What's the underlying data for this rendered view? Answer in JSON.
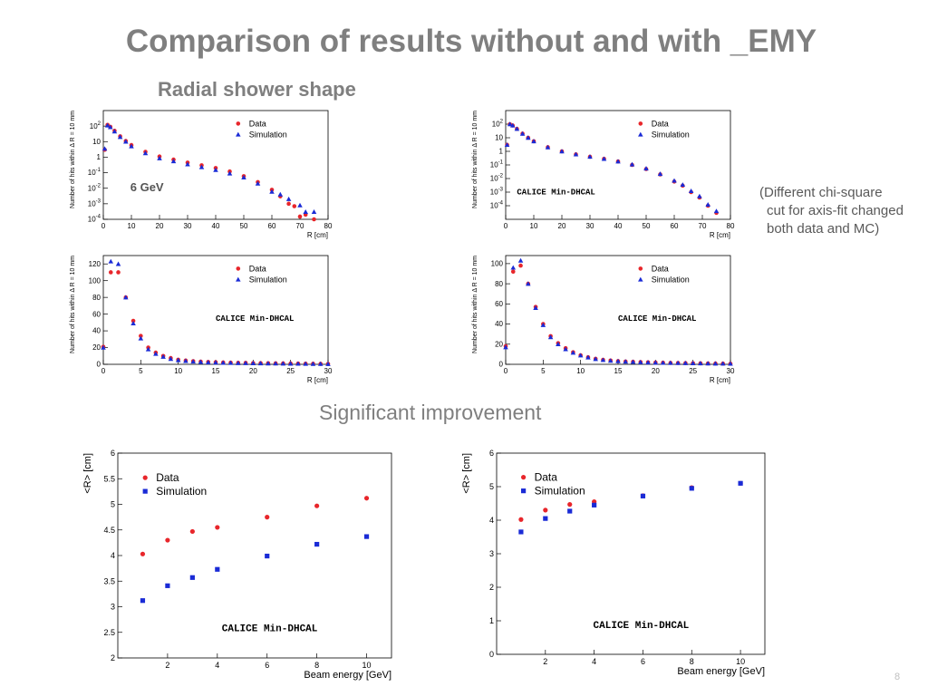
{
  "slide": {
    "title": "Comparison of results without and with _EMY",
    "subtitle": "Radial shower shape",
    "note_lines": [
      "(Different chi-square",
      "cut for axis-fit changed",
      "both data and MC)"
    ],
    "improvement": "Significant improvement",
    "page_number": "8"
  },
  "colors": {
    "data": "#e8262b",
    "simulation": "#1a2bd6",
    "title_text": "#7f7f7f"
  },
  "chart_data": [
    {
      "id": "radial-log-without",
      "type": "scatter",
      "yscale": "log",
      "xlabel": "R [cm]",
      "ylabel": "Number of hits within Δ R = 10 mm",
      "xlim": [
        0,
        80
      ],
      "ylim": [
        0.0001,
        1000
      ],
      "xticks": [
        0,
        10,
        20,
        30,
        40,
        50,
        60,
        70,
        80
      ],
      "yticks": [
        {
          "v": 100,
          "b": "10",
          "e": "2"
        },
        {
          "v": 10,
          "b": "10",
          "e": ""
        },
        {
          "v": 1,
          "b": "1",
          "e": ""
        },
        {
          "v": 0.1,
          "b": "10",
          "e": "-1"
        },
        {
          "v": 0.01,
          "b": "10",
          "e": "-2"
        },
        {
          "v": 0.001,
          "b": "10",
          "e": "-3"
        },
        {
          "v": 0.0001,
          "b": "10",
          "e": "-4"
        }
      ],
      "legend": [
        "Data",
        "Simulation"
      ],
      "annotation": "6 GeV",
      "series": [
        {
          "name": "Data",
          "x": [
            0.5,
            1.5,
            2.5,
            4,
            6,
            8,
            10,
            15,
            20,
            25,
            30,
            35,
            40,
            45,
            50,
            55,
            60,
            63,
            66,
            68,
            70,
            72,
            75
          ],
          "y": [
            3,
            120,
            90,
            50,
            22,
            11,
            6,
            2.2,
            1.1,
            0.7,
            0.45,
            0.3,
            0.2,
            0.12,
            0.06,
            0.025,
            0.008,
            0.003,
            0.001,
            0.0007,
            0.00015,
            0.0002,
            0.0001
          ]
        },
        {
          "name": "Simulation",
          "x": [
            0.5,
            1.5,
            2.5,
            4,
            6,
            8,
            10,
            15,
            20,
            25,
            30,
            35,
            40,
            45,
            50,
            55,
            60,
            63,
            66,
            70,
            72,
            75
          ],
          "y": [
            3.5,
            110,
            85,
            45,
            20,
            10,
            5,
            1.8,
            0.85,
            0.55,
            0.35,
            0.23,
            0.15,
            0.09,
            0.05,
            0.02,
            0.006,
            0.004,
            0.002,
            0.0008,
            0.0003,
            0.0003
          ]
        }
      ]
    },
    {
      "id": "radial-log-with",
      "type": "scatter",
      "yscale": "log",
      "xlabel": "R [cm]",
      "ylabel": "Number of hits within Δ R = 10 mm",
      "xlim": [
        0,
        80
      ],
      "ylim": [
        1e-05,
        1000
      ],
      "xticks": [
        0,
        10,
        20,
        30,
        40,
        50,
        60,
        70,
        80
      ],
      "yticks": [
        {
          "v": 100,
          "b": "10",
          "e": "2"
        },
        {
          "v": 10,
          "b": "10",
          "e": ""
        },
        {
          "v": 1,
          "b": "1",
          "e": ""
        },
        {
          "v": 0.1,
          "b": "10",
          "e": "-1"
        },
        {
          "v": 0.01,
          "b": "10",
          "e": "-2"
        },
        {
          "v": 0.001,
          "b": "10",
          "e": "-3"
        },
        {
          "v": 0.0001,
          "b": "10",
          "e": "-4"
        }
      ],
      "legend": [
        "Data",
        "Simulation"
      ],
      "annotation": "CALICE Min-DHCAL",
      "series": [
        {
          "name": "Data",
          "x": [
            0.5,
            1.5,
            2.5,
            4,
            6,
            8,
            10,
            15,
            20,
            25,
            30,
            35,
            40,
            45,
            50,
            55,
            60,
            63,
            66,
            69,
            72,
            75
          ],
          "y": [
            3,
            100,
            80,
            45,
            20,
            10,
            5.5,
            2,
            1,
            0.6,
            0.4,
            0.28,
            0.18,
            0.1,
            0.05,
            0.02,
            0.006,
            0.003,
            0.001,
            0.0004,
            0.0001,
            3e-05
          ]
        },
        {
          "name": "Simulation",
          "x": [
            0.5,
            1.5,
            2.5,
            4,
            6,
            8,
            10,
            15,
            20,
            25,
            30,
            35,
            40,
            45,
            50,
            55,
            60,
            63,
            66,
            69,
            72,
            75
          ],
          "y": [
            3,
            100,
            80,
            45,
            20,
            10,
            5.5,
            2,
            1,
            0.6,
            0.4,
            0.28,
            0.18,
            0.11,
            0.055,
            0.022,
            0.007,
            0.0035,
            0.0012,
            0.0005,
            0.00012,
            4e-05
          ]
        }
      ]
    },
    {
      "id": "radial-lin-without",
      "type": "scatter",
      "yscale": "linear",
      "xlabel": "R [cm]",
      "ylabel": "Number of hits within Δ R = 10 mm",
      "xlim": [
        0,
        30
      ],
      "ylim": [
        0,
        130
      ],
      "xticks": [
        0,
        5,
        10,
        15,
        20,
        25,
        30
      ],
      "yticks": [
        0,
        20,
        40,
        60,
        80,
        100,
        120
      ],
      "legend": [
        "Data",
        "Simulation"
      ],
      "annotation": "CALICE Min-DHCAL",
      "series": [
        {
          "name": "Data",
          "x": [
            0,
            1,
            2,
            3,
            4,
            5,
            6,
            7,
            8,
            9,
            10,
            11,
            12,
            13,
            14,
            15,
            16,
            17,
            18,
            19,
            20,
            21,
            22,
            23,
            24,
            25,
            26,
            27,
            28,
            29,
            30
          ],
          "y": [
            21,
            110,
            110,
            80,
            52,
            34,
            20,
            14,
            10,
            7.5,
            5.5,
            4.5,
            3.8,
            3.2,
            2.8,
            2.5,
            2.2,
            2,
            1.8,
            1.7,
            1.5,
            1.4,
            1.3,
            1.2,
            1.1,
            1,
            0.9,
            0.8,
            0.7,
            0.6,
            0.5
          ]
        },
        {
          "name": "Simulation",
          "x": [
            0,
            1,
            2,
            3,
            4,
            5,
            6,
            7,
            8,
            9,
            10,
            11,
            12,
            13,
            14,
            15,
            16,
            17,
            18,
            19,
            20,
            21,
            22,
            23,
            24,
            25,
            26,
            27,
            28,
            29,
            30
          ],
          "y": [
            20,
            123,
            120,
            80,
            49,
            31,
            18,
            12.5,
            9,
            6.5,
            5,
            4,
            3.3,
            2.8,
            2.4,
            2.1,
            1.9,
            1.7,
            1.5,
            1.4,
            1.3,
            1.2,
            1.1,
            1,
            0.9,
            0.8,
            0.7,
            0.6,
            0.55,
            0.5,
            0.4
          ]
        }
      ]
    },
    {
      "id": "radial-lin-with",
      "type": "scatter",
      "yscale": "linear",
      "xlabel": "R [cm]",
      "ylabel": "Number of hits within Δ R = 10 mm",
      "xlim": [
        0,
        30
      ],
      "ylim": [
        0,
        108
      ],
      "xticks": [
        0,
        5,
        10,
        15,
        20,
        25,
        30
      ],
      "yticks": [
        0,
        20,
        40,
        60,
        80,
        100
      ],
      "legend": [
        "Data",
        "Simulation"
      ],
      "annotation": "CALICE Min-DHCAL",
      "series": [
        {
          "name": "Data",
          "x": [
            0,
            1,
            2,
            3,
            4,
            5,
            6,
            7,
            8,
            9,
            10,
            11,
            12,
            13,
            14,
            15,
            16,
            17,
            18,
            19,
            20,
            21,
            22,
            23,
            24,
            25,
            26,
            27,
            28,
            29,
            30
          ],
          "y": [
            18,
            92,
            98,
            80,
            57,
            40,
            28,
            21,
            16,
            12,
            9,
            7,
            5.5,
            4.5,
            3.8,
            3.2,
            2.8,
            2.5,
            2.2,
            2,
            1.8,
            1.6,
            1.4,
            1.3,
            1.2,
            1.1,
            1,
            0.9,
            0.8,
            0.7,
            0.6
          ]
        },
        {
          "name": "Simulation",
          "x": [
            0,
            1,
            2,
            3,
            4,
            5,
            6,
            7,
            8,
            9,
            10,
            11,
            12,
            13,
            14,
            15,
            16,
            17,
            18,
            19,
            20,
            21,
            22,
            23,
            24,
            25,
            26,
            27,
            28,
            29,
            30
          ],
          "y": [
            17,
            96,
            103,
            80,
            56,
            39,
            27,
            20,
            15,
            11.5,
            8.8,
            6.8,
            5.3,
            4.3,
            3.6,
            3.1,
            2.7,
            2.4,
            2.1,
            1.9,
            1.7,
            1.5,
            1.4,
            1.3,
            1.2,
            1.1,
            1,
            0.9,
            0.8,
            0.7,
            0.6
          ]
        }
      ]
    },
    {
      "id": "mean-r-without",
      "type": "scatter",
      "yscale": "linear",
      "xlabel": "Beam energy [GeV]",
      "ylabel": "<R> [cm]",
      "xlim": [
        0,
        11
      ],
      "ylim": [
        2,
        6
      ],
      "xticks": [
        2,
        4,
        6,
        8,
        10
      ],
      "yticks": [
        2,
        2.5,
        3,
        3.5,
        4,
        4.5,
        5,
        5.5,
        6
      ],
      "legend": [
        "Data",
        "Simulation"
      ],
      "annotation": "CALICE Min-DHCAL",
      "series": [
        {
          "name": "Data",
          "x": [
            1,
            2,
            3,
            4,
            6,
            8,
            10
          ],
          "y": [
            4.03,
            4.3,
            4.47,
            4.55,
            4.75,
            4.97,
            5.12
          ]
        },
        {
          "name": "Simulation",
          "x": [
            1,
            2,
            3,
            4,
            6,
            8,
            10
          ],
          "y": [
            3.12,
            3.41,
            3.57,
            3.73,
            3.99,
            4.22,
            4.37
          ]
        }
      ]
    },
    {
      "id": "mean-r-with",
      "type": "scatter",
      "yscale": "linear",
      "xlabel": "Beam energy [GeV]",
      "ylabel": "<R> [cm]",
      "xlim": [
        0,
        11
      ],
      "ylim": [
        0,
        6
      ],
      "xticks": [
        2,
        4,
        6,
        8,
        10
      ],
      "yticks": [
        0,
        1,
        2,
        3,
        4,
        5,
        6
      ],
      "legend": [
        "Data",
        "Simulation"
      ],
      "annotation": "CALICE Min-DHCAL",
      "series": [
        {
          "name": "Data",
          "x": [
            1,
            2,
            3,
            4,
            6,
            8,
            10
          ],
          "y": [
            4.02,
            4.3,
            4.47,
            4.55,
            4.73,
            4.97,
            5.1
          ]
        },
        {
          "name": "Simulation",
          "x": [
            1,
            2,
            3,
            4,
            6,
            8,
            10
          ],
          "y": [
            3.65,
            4.05,
            4.27,
            4.45,
            4.72,
            4.95,
            5.1
          ]
        }
      ]
    }
  ]
}
